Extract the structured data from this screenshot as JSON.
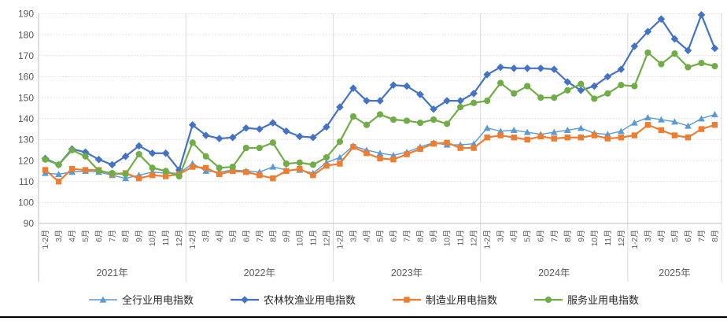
{
  "chart_data": {
    "type": "line",
    "title": "",
    "ylim": [
      90,
      190
    ],
    "y_step": 10,
    "grid": true,
    "legend_position": "bottom",
    "years": [
      {
        "label": "2021年",
        "months": [
          "1-2月",
          "3月",
          "4月",
          "5月",
          "6月",
          "7月",
          "8月",
          "9月",
          "10月",
          "11月",
          "12月"
        ]
      },
      {
        "label": "2022年",
        "months": [
          "1-2月",
          "3月",
          "4月",
          "5月",
          "6月",
          "7月",
          "8月",
          "9月",
          "10月",
          "11月",
          "12月"
        ]
      },
      {
        "label": "2023年",
        "months": [
          "1-2月",
          "3月",
          "4月",
          "5月",
          "6月",
          "7月",
          "8月",
          "9月",
          "10月",
          "11月",
          "12月"
        ]
      },
      {
        "label": "2024年",
        "months": [
          "1-2月",
          "3月",
          "4月",
          "5月",
          "6月",
          "7月",
          "8月",
          "9月",
          "10月",
          "11月",
          "12月"
        ]
      },
      {
        "label": "2025年",
        "months": [
          "1-2月",
          "3月",
          "4月",
          "5月",
          "6月",
          "7月",
          "8月"
        ]
      }
    ],
    "series": [
      {
        "name": "全行业用电指数",
        "marker": "triangle",
        "color": "#5B9BD5",
        "line_width": 1.4,
        "values": [
          114,
          113.5,
          114.5,
          115,
          114.5,
          113,
          111.5,
          113,
          114.5,
          114,
          114,
          118.5,
          115,
          114.5,
          115.5,
          115,
          114.5,
          117,
          115.5,
          115.5,
          114,
          119,
          121.5,
          127,
          125,
          123.5,
          122.5,
          124,
          126.5,
          128.5,
          127.5,
          127.5,
          128,
          135.5,
          134,
          134.5,
          133.5,
          132.5,
          133.5,
          134.5,
          135.5,
          133,
          132.5,
          134,
          138,
          140.5,
          139.5,
          138.5,
          136.5,
          140,
          142
        ]
      },
      {
        "name": "农林牧渔业用电指数",
        "marker": "diamond",
        "color": "#4472C4",
        "line_width": 2.2,
        "values": [
          121,
          118,
          125.5,
          124,
          120.5,
          118,
          122,
          127,
          123.5,
          123.5,
          115.5,
          137,
          132,
          130.5,
          131,
          135.5,
          135,
          138,
          134,
          131.5,
          131,
          136,
          145.5,
          154.5,
          148.5,
          148.5,
          156,
          155.5,
          151.5,
          144.5,
          148.5,
          148.5,
          152,
          161,
          164.5,
          164,
          164,
          164,
          163.5,
          157.5,
          153.5,
          155.5,
          160,
          163.5,
          174.5,
          181.5,
          187.5,
          178,
          172.5,
          189.5,
          173.5
        ]
      },
      {
        "name": "制造业用电指数",
        "marker": "square",
        "color": "#ED7D31",
        "line_width": 2.2,
        "values": [
          115.5,
          110,
          116,
          115.5,
          115.5,
          113.5,
          114,
          111.5,
          113,
          112.5,
          113.5,
          117,
          116.5,
          113.5,
          115,
          114.5,
          113,
          111.5,
          115,
          116,
          113,
          117.5,
          118.5,
          126.5,
          123.5,
          121,
          120.5,
          123,
          125.5,
          128,
          128.5,
          126,
          126,
          131,
          132,
          131,
          130,
          131.5,
          130.5,
          131,
          131,
          132,
          130.5,
          131,
          132,
          137,
          134.5,
          132,
          131,
          135,
          137
        ]
      },
      {
        "name": "服务业用电指数",
        "marker": "circle",
        "color": "#70AD47",
        "line_width": 2.2,
        "values": [
          120.5,
          118,
          125,
          122,
          115,
          114,
          113.5,
          123,
          116.5,
          115,
          112.5,
          128.5,
          122,
          116.5,
          117,
          126,
          126,
          128.5,
          118.5,
          119,
          118,
          121.5,
          129,
          141,
          137,
          142,
          139.5,
          139,
          138,
          139.5,
          137.5,
          145.5,
          147.5,
          148.5,
          157,
          152,
          155.5,
          150,
          150,
          153.5,
          156.5,
          149.5,
          152,
          156,
          155.5,
          171.5,
          166,
          171,
          164.5,
          166.5,
          165
        ]
      }
    ],
    "colors": {
      "gridline": "#D9D9D9",
      "axis": "#BFBFBF",
      "tick_text": "#595959",
      "legend_text": "#262626",
      "bottom_rule": "#000000"
    }
  }
}
